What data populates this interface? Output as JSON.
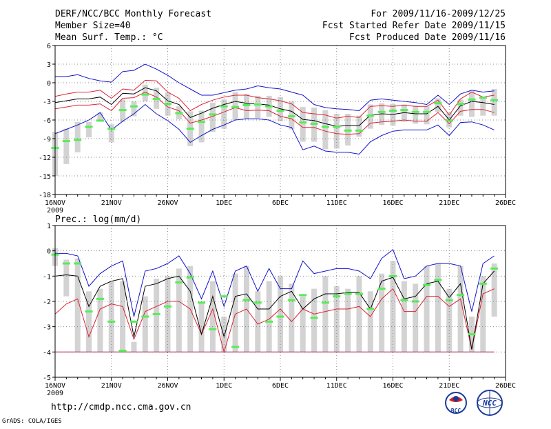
{
  "header": {
    "title": "DERF/NCC/BCC Monthly Forecast",
    "member": "Member Size=40",
    "variable": "Mean Surf. Temp.: °C",
    "period": "For 2009/11/16-2009/12/25",
    "started": "Fcst Started Refer Date 2009/11/15",
    "produced": "Fcst Produced Date 2009/11/16"
  },
  "footer": {
    "url": "http://cmdp.ncc.cma.gov.cn",
    "credit": "GrADS: COLA/IGES",
    "logo_bcc": "BCC",
    "logo_ncc": "NCC"
  },
  "colors": {
    "box": "#d3d3d3",
    "median": "#55ee55",
    "mean": "#000000",
    "sd": "#dd2233",
    "extreme": "#1111cc",
    "grid": "#888888"
  },
  "chart_data": [
    {
      "type": "box",
      "title": "Mean Surf. Temp.: °C",
      "ylim": [
        -18,
        6
      ],
      "yticks": [
        "6",
        "3",
        "0",
        "-3",
        "-6",
        "-9",
        "-12",
        "-15",
        "-18"
      ],
      "xlabels": [
        "16NOV",
        "21NOV",
        "26NOV",
        "1DEC",
        "6DEC",
        "11DEC",
        "16DEC",
        "21DEC",
        "26DEC"
      ],
      "xyear": "2009",
      "days": 40,
      "upper": [
        1,
        1,
        1.3,
        0.7,
        0.3,
        0.1,
        1.8,
        2,
        3,
        2.2,
        1.2,
        0,
        -1,
        -2,
        -2,
        -1.6,
        -1.2,
        -1,
        -0.5,
        -0.8,
        -1,
        -1.5,
        -2,
        -3.5,
        -4,
        -4.2,
        -4.3,
        -4.5,
        -2.8,
        -2.6,
        -2.8,
        -3,
        -3.2,
        -3.5,
        -2,
        -3.5,
        -1.8,
        -1.2,
        -1.5,
        -1.3
      ],
      "upper_sd": [
        -2.2,
        -1.8,
        -1.5,
        -1.5,
        -1.2,
        -2.5,
        -1,
        -1.2,
        0.4,
        0.3,
        -1.5,
        -2.5,
        -4.5,
        -3.5,
        -2.8,
        -2.3,
        -2,
        -2,
        -2.4,
        -2.6,
        -2.9,
        -3.4,
        -4.8,
        -5,
        -5.2,
        -5.7,
        -5.4,
        -5.6,
        -3.8,
        -3.7,
        -3.8,
        -3.6,
        -3.8,
        -3.8,
        -2.8,
        -5.2,
        -2.6,
        -1.5,
        -2.3,
        -2
      ],
      "mean": [
        -3.2,
        -2.9,
        -2.6,
        -2.6,
        -2.3,
        -3.5,
        -1.7,
        -1.8,
        -0.8,
        -1.3,
        -2.9,
        -3.5,
        -5.6,
        -4.9,
        -4.1,
        -3.5,
        -3,
        -3.3,
        -3.4,
        -3.6,
        -4.2,
        -4.6,
        -5.9,
        -6.1,
        -6.6,
        -7,
        -6.9,
        -6.9,
        -5.2,
        -5,
        -5.1,
        -4.8,
        -5,
        -5,
        -3.8,
        -6,
        -3.7,
        -3,
        -3.2,
        -3.5
      ],
      "lower_sd": [
        -4.2,
        -3.9,
        -3.6,
        -3.6,
        -3.4,
        -4.5,
        -2.5,
        -2.4,
        -1.5,
        -2.3,
        -3.9,
        -4.5,
        -6.5,
        -6,
        -5.4,
        -4.7,
        -4,
        -4.5,
        -4.4,
        -4.5,
        -5.4,
        -5.8,
        -7.2,
        -7.2,
        -7.8,
        -8.2,
        -8.3,
        -8.2,
        -6.5,
        -6.3,
        -6.2,
        -6,
        -6.2,
        -6.2,
        -4.8,
        -6.6,
        -4.6,
        -4.3,
        -4.3,
        -4.8
      ],
      "lower": [
        -8.2,
        -7.5,
        -6.8,
        -6,
        -4.8,
        -7.6,
        -6.2,
        -5,
        -3.5,
        -5,
        -6.1,
        -7.5,
        -9.6,
        -8.5,
        -7.5,
        -6.8,
        -6,
        -5.8,
        -5.8,
        -6,
        -6.8,
        -7.2,
        -10.8,
        -10.2,
        -11,
        -11.2,
        -11.2,
        -11.5,
        -9.5,
        -8.5,
        -7.8,
        -7.6,
        -7.6,
        -7.6,
        -6.8,
        -8.5,
        -6.4,
        -6.3,
        -6.8,
        -7.6
      ],
      "box_top": [
        -7.9,
        -7.4,
        -6.3,
        -6.3,
        -4.8,
        -6.7,
        -2.7,
        -3,
        -0.3,
        -0.8,
        -1.6,
        -3.8,
        -4.6,
        -4.5,
        -3.2,
        -2.7,
        -1.5,
        -1.8,
        -2.1,
        -2.1,
        -2.3,
        -3,
        -3.9,
        -4,
        -4.4,
        -5,
        -5,
        -5.3,
        -3.5,
        -3.3,
        -3.4,
        -3.5,
        -3.7,
        -3.8,
        -2.5,
        -4.8,
        -2.7,
        -1.3,
        -2.3,
        -1
      ],
      "box_bot": [
        -15,
        -13.1,
        -11.2,
        -8.8,
        -6,
        -9.6,
        -6.3,
        -5.4,
        -3,
        -4.2,
        -5.3,
        -5.9,
        -10.2,
        -9.6,
        -7.9,
        -7.4,
        -6,
        -5.9,
        -5.7,
        -5.5,
        -6.2,
        -7.5,
        -9.5,
        -9.5,
        -10.7,
        -10.6,
        -10.1,
        -8.7,
        -7.4,
        -6.8,
        -6.9,
        -6.3,
        -6.6,
        -6.7,
        -4.7,
        -7.2,
        -5.3,
        -5.5,
        -5.3,
        -5.3
      ],
      "median": [
        -10.5,
        -9.4,
        -9.2,
        -7.1,
        -6.1,
        -7.4,
        -4.4,
        -3.8,
        -1.9,
        -2.6,
        -3.4,
        -4.9,
        -7.4,
        -6.3,
        -5.1,
        -3.8,
        -3.9,
        -3.6,
        -3.5,
        -3.8,
        -4.5,
        -5.4,
        -6.4,
        -6.6,
        -7.1,
        -7.1,
        -7.7,
        -7.7,
        -5.3,
        -4.7,
        -4.5,
        -4.4,
        -4.7,
        -4.7,
        -3.3,
        -6.1,
        -3.4,
        -2.7,
        -2.4,
        -2.8
      ]
    },
    {
      "type": "box",
      "title": "Prec.: log(mm/d)",
      "ylim": [
        -5,
        1
      ],
      "yticks": [
        "1",
        "0",
        "-1",
        "-2",
        "-3",
        "-4",
        "-5"
      ],
      "xlabels": [
        "16NOV",
        "21NOV",
        "26NOV",
        "1DEC",
        "6DEC",
        "11DEC",
        "16DEC",
        "21DEC",
        "26DEC"
      ],
      "xyear": "2009",
      "days": 40,
      "upper": [
        -0.1,
        -0.1,
        -0.2,
        -1.4,
        -0.9,
        -0.6,
        -0.4,
        -2.6,
        -0.8,
        -0.7,
        -0.5,
        -0.2,
        -0.9,
        -1.9,
        -0.8,
        -2.2,
        -0.8,
        -0.6,
        -1.6,
        -0.7,
        -1.5,
        -1.5,
        -0.4,
        -0.9,
        -0.8,
        -0.7,
        -0.7,
        -0.8,
        -1.1,
        -0.3,
        0.05,
        -1.1,
        -1,
        -0.6,
        -0.5,
        -0.5,
        -0.6,
        -2.4,
        -0.5,
        -0.2
      ],
      "upper_sd": [
        -2.5,
        -2.1,
        -1.9,
        -3.4,
        -2.3,
        -2.1,
        -2.2,
        -3.5,
        -2.4,
        -2.2,
        -2,
        -2,
        -2.3,
        -3.3,
        -2.3,
        -4,
        -2.5,
        -2.3,
        -2.9,
        -2.7,
        -2.3,
        -2.8,
        -2.3,
        -2.5,
        -2.4,
        -2.3,
        -2.3,
        -2.2,
        -2.6,
        -1.9,
        -1.5,
        -2.4,
        -2.4,
        -1.8,
        -1.8,
        -2.2,
        -1.9,
        -3.9,
        -1.7,
        -1.5
      ],
      "mean": [
        -1,
        -0.95,
        -1,
        -2.2,
        -1.4,
        -1.2,
        -1.1,
        -3.4,
        -1.4,
        -1.3,
        -1.1,
        -1,
        -1.6,
        -3.3,
        -1.8,
        -3.4,
        -1.8,
        -1.7,
        -2.3,
        -2.3,
        -1.8,
        -1.6,
        -2.3,
        -1.9,
        -1.7,
        -1.7,
        -1.65,
        -1.65,
        -2.3,
        -1.2,
        -1.05,
        -1.9,
        -1.8,
        -1.3,
        -1.2,
        -1.85,
        -1.3,
        -3.9,
        -1.3,
        -0.8
      ],
      "lower_sd": [
        -4,
        -4,
        -4,
        -4,
        -4,
        -4,
        -4,
        -4,
        -4,
        -4,
        -4,
        -4,
        -4,
        -4,
        -4,
        -4,
        -4,
        -4,
        -4,
        -4,
        -4,
        -4,
        -4,
        -4,
        -4,
        -4,
        -4,
        -4,
        -4,
        -4,
        -4,
        -4,
        -4,
        -4,
        -4,
        -4,
        -4,
        -4,
        -4,
        -4
      ],
      "lower": [
        -4,
        -4,
        -4,
        -4,
        -4,
        -4,
        -4,
        -4,
        -4,
        -4,
        -4,
        -4,
        -4,
        -4,
        -4,
        -4,
        -4,
        -4,
        -4,
        -4,
        -4,
        -4,
        -4,
        -4,
        -4,
        -4,
        -4,
        -4,
        -4,
        -4,
        -4,
        -4,
        -4,
        -4,
        -4,
        -4,
        -4,
        -4,
        -4,
        -4
      ],
      "box_top": [
        0.1,
        -0.35,
        -0.3,
        -1.6,
        -1.5,
        -1.2,
        -1.2,
        -3.6,
        -1.8,
        -1.1,
        -1,
        -0.7,
        -0.6,
        -2,
        -1.2,
        -2.6,
        -0.9,
        -0.6,
        -1.6,
        -1.2,
        -1,
        -1.3,
        -1.8,
        -1.5,
        -1,
        -1.4,
        -1.5,
        -1,
        -1.6,
        -0.9,
        -0.4,
        -1.2,
        -1.3,
        -0.6,
        -0.5,
        -1.5,
        -0.6,
        -2.6,
        -1,
        -0.5
      ],
      "box_bot": [
        -0.6,
        -1.8,
        -4,
        -4,
        -4,
        -4,
        -4,
        -4,
        -4,
        -4,
        -4,
        -4,
        -4,
        -4,
        -4,
        -4,
        -4,
        -4,
        -4,
        -4,
        -4,
        -4,
        -4,
        -4,
        -4,
        -4,
        -4,
        -4,
        -4,
        -4,
        -4,
        -4,
        -4,
        -4,
        -4,
        -4,
        -4,
        -4,
        -4,
        -2.6
      ],
      "median": [
        -0.15,
        -0.5,
        -0.5,
        -2.4,
        -1.9,
        -2.8,
        -3.95,
        -2.8,
        -2.6,
        -2.5,
        -2.2,
        -1.25,
        -1.05,
        -2.05,
        -3.1,
        -1.8,
        -3.8,
        -1.95,
        -2.05,
        -2.8,
        -2.6,
        -1.95,
        -1.75,
        -2.65,
        -2.05,
        -1.8,
        -1.7,
        -1.7,
        -2.3,
        -1.5,
        -1,
        -1.95,
        -2,
        -1.35,
        -1.15,
        -1.95,
        -1.75,
        -3.3,
        -1.3,
        -0.7
      ]
    }
  ]
}
